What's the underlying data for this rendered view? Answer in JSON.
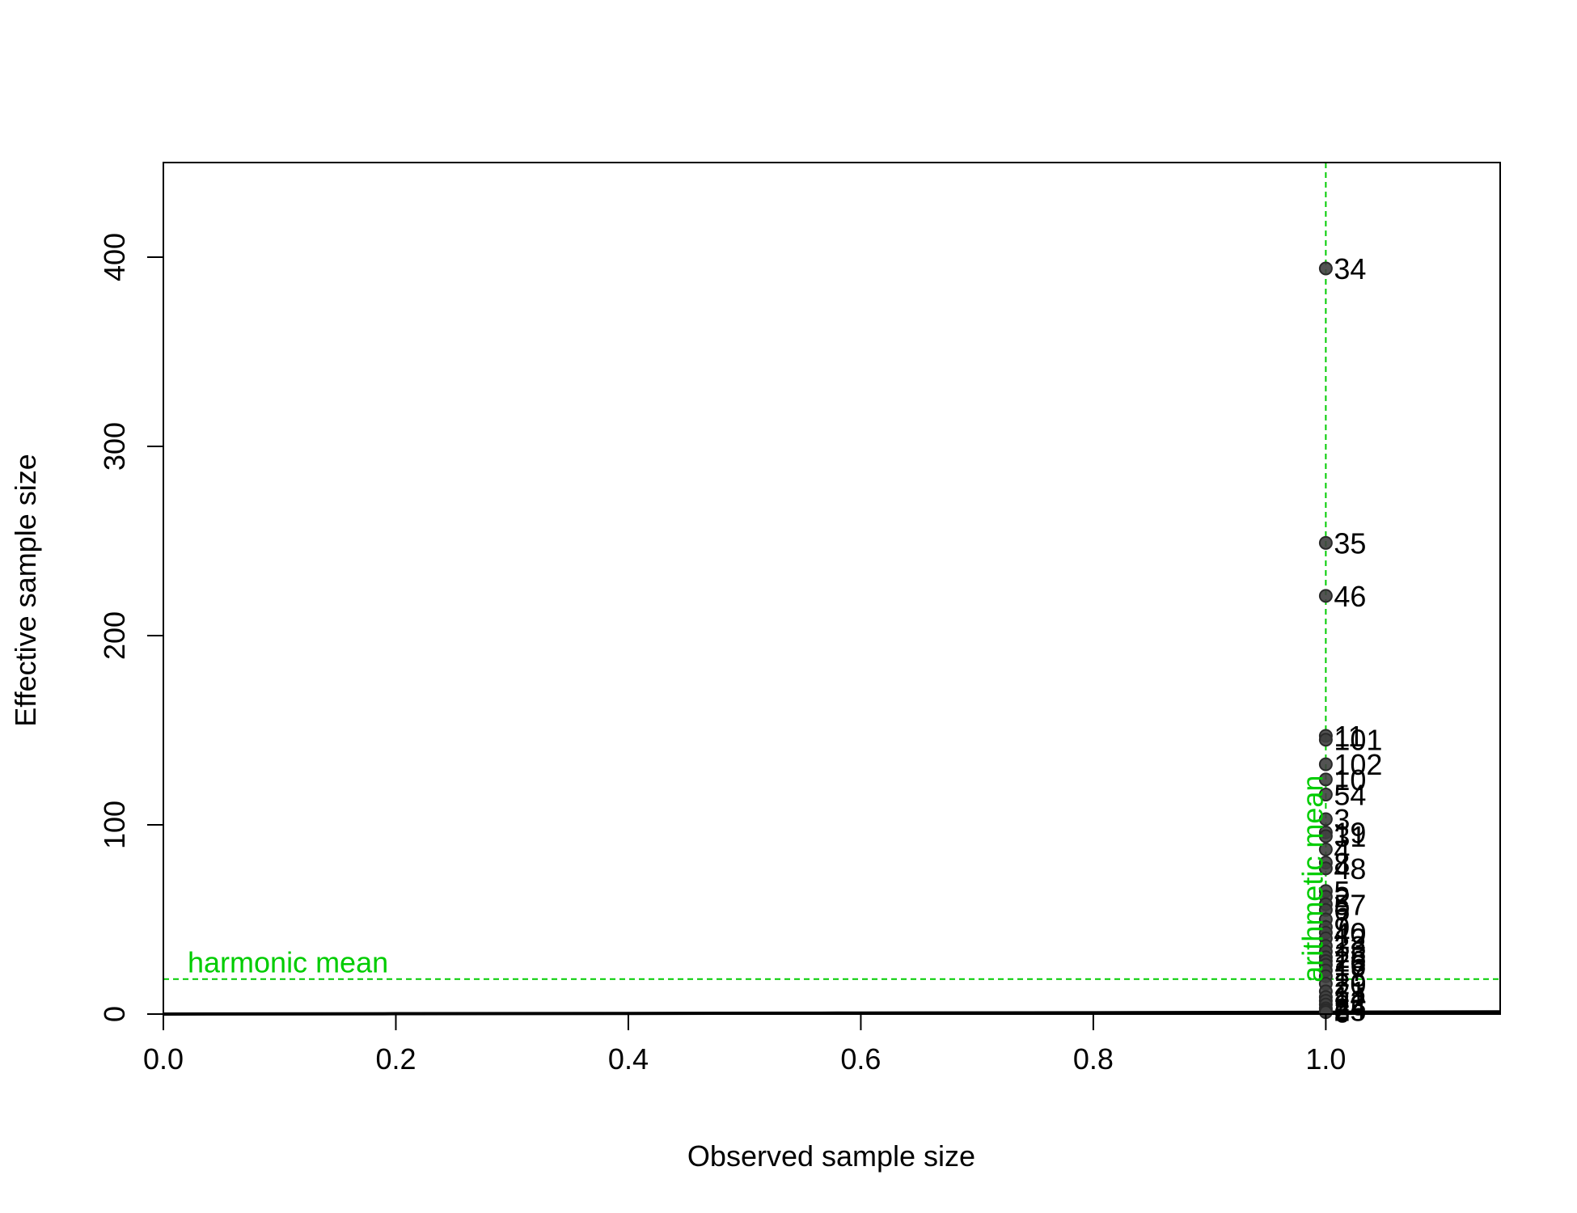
{
  "chart_data": {
    "type": "scatter",
    "xlabel": "Observed sample size",
    "ylabel": "Effective sample size",
    "xlim": [
      0,
      1.15
    ],
    "ylim": [
      0,
      450
    ],
    "x_ticks": [
      0.0,
      0.2,
      0.4,
      0.6,
      0.8,
      1.0
    ],
    "x_tick_labels": [
      "0.0",
      "0.2",
      "0.4",
      "0.6",
      "0.8",
      "1.0"
    ],
    "y_ticks": [
      0,
      100,
      200,
      300,
      400
    ],
    "y_tick_labels": [
      "0",
      "100",
      "200",
      "300",
      "400"
    ],
    "grid": false,
    "reference_lines": [
      {
        "orientation": "horizontal",
        "value": 18.5,
        "label": "harmonic mean",
        "color": "#00cc00"
      },
      {
        "orientation": "vertical",
        "value": 1.0,
        "label": "arithmetic mean",
        "color": "#00cc00"
      }
    ],
    "points": [
      {
        "x": 1.0,
        "y": 394,
        "label": "34"
      },
      {
        "x": 1.0,
        "y": 249,
        "label": "35"
      },
      {
        "x": 1.0,
        "y": 221,
        "label": "46"
      },
      {
        "x": 1.0,
        "y": 147,
        "label": "11"
      },
      {
        "x": 1.0,
        "y": 145,
        "label": "101"
      },
      {
        "x": 1.0,
        "y": 132,
        "label": "102"
      },
      {
        "x": 1.0,
        "y": 124,
        "label": "10"
      },
      {
        "x": 1.0,
        "y": 116,
        "label": "54"
      },
      {
        "x": 1.0,
        "y": 103,
        "label": "3"
      },
      {
        "x": 1.0,
        "y": 96,
        "label": "19"
      },
      {
        "x": 1.0,
        "y": 94,
        "label": "31"
      },
      {
        "x": 1.0,
        "y": 87,
        "label": "4"
      },
      {
        "x": 1.0,
        "y": 80,
        "label": "8"
      },
      {
        "x": 1.0,
        "y": 77,
        "label": "48"
      },
      {
        "x": 1.0,
        "y": 65,
        "label": "5"
      },
      {
        "x": 1.0,
        "y": 62,
        "label": "2"
      },
      {
        "x": 1.0,
        "y": 58,
        "label": "57"
      },
      {
        "x": 1.0,
        "y": 55,
        "label": "6"
      },
      {
        "x": 1.0,
        "y": 50,
        "label": "7"
      },
      {
        "x": 1.0,
        "y": 46,
        "label": "9"
      },
      {
        "x": 1.0,
        "y": 43,
        "label": "40"
      },
      {
        "x": 1.0,
        "y": 40,
        "label": "12"
      },
      {
        "x": 1.0,
        "y": 36,
        "label": "33"
      },
      {
        "x": 1.0,
        "y": 33,
        "label": "13"
      },
      {
        "x": 1.0,
        "y": 30,
        "label": "15"
      },
      {
        "x": 1.0,
        "y": 28,
        "label": "26"
      },
      {
        "x": 1.0,
        "y": 26,
        "label": "16"
      },
      {
        "x": 1.0,
        "y": 23,
        "label": "17"
      },
      {
        "x": 1.0,
        "y": 20,
        "label": "18"
      },
      {
        "x": 1.0,
        "y": 16,
        "label": "20"
      },
      {
        "x": 1.0,
        "y": 12,
        "label": "21"
      },
      {
        "x": 1.0,
        "y": 9,
        "label": "14"
      },
      {
        "x": 1.0,
        "y": 7,
        "label": "22"
      },
      {
        "x": 1.0,
        "y": 5,
        "label": "23"
      },
      {
        "x": 1.0,
        "y": 3,
        "label": "24"
      },
      {
        "x": 1.0,
        "y": 2,
        "label": "25"
      },
      {
        "x": 1.0,
        "y": 1,
        "label": "6"
      }
    ],
    "curve": [
      [
        0.0,
        0.0
      ],
      [
        0.19,
        0.15
      ],
      [
        0.2,
        0.2
      ],
      [
        0.4,
        0.35
      ],
      [
        0.58,
        0.5
      ],
      [
        0.6,
        0.55
      ],
      [
        0.8,
        0.7
      ],
      [
        0.96,
        0.9
      ],
      [
        1.0,
        1.0
      ],
      [
        1.15,
        1.2
      ]
    ]
  }
}
